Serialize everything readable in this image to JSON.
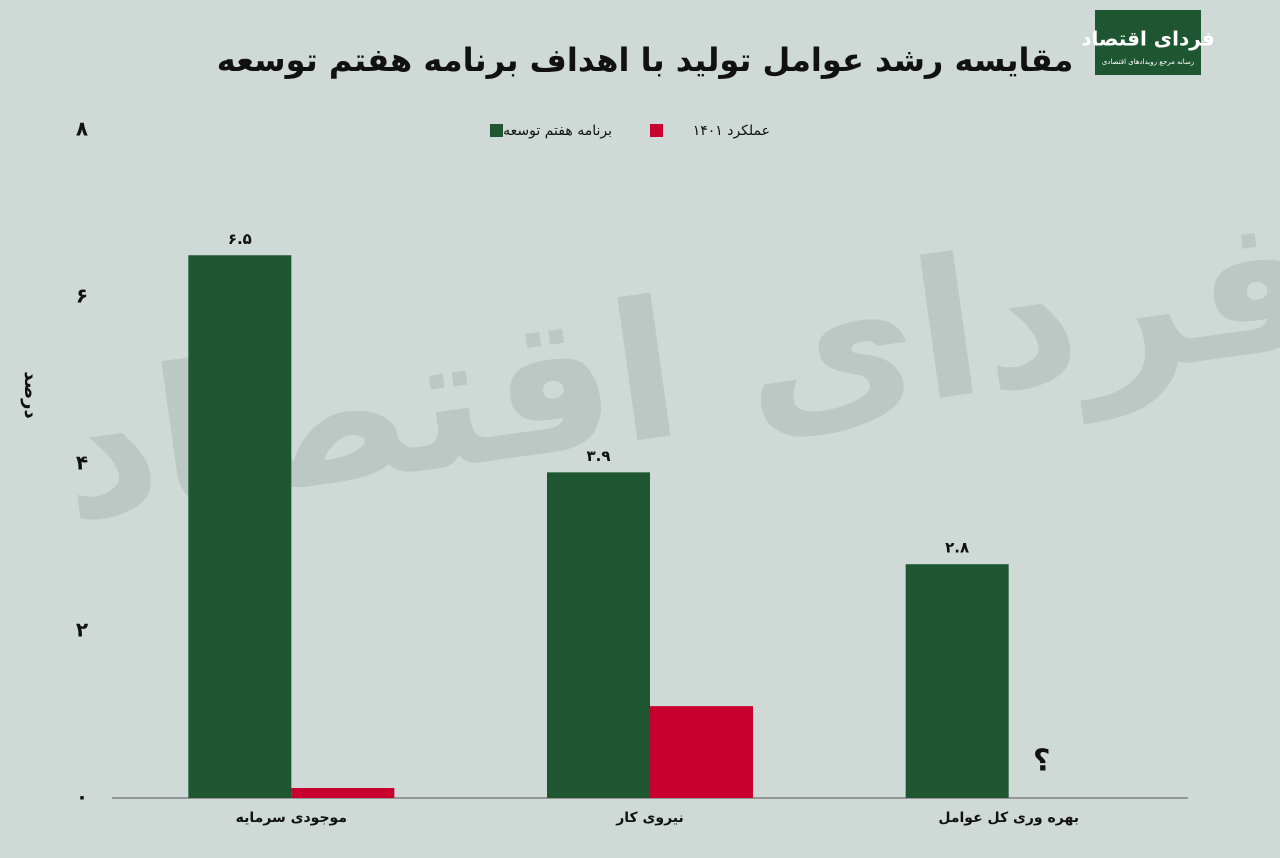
{
  "chart_data": {
    "type": "bar",
    "title": "مقایسه رشد عوامل تولید با اهداف برنامه هفتم توسعه",
    "logo": "فردای اقتصاد",
    "logo_subtitle": "رسانه مرجع رویدادهای اقتصادی",
    "watermark": "فردای اقتصاد",
    "y_label": "درصد",
    "categories": [
      "موجودی سرمایه",
      "نیروی کار",
      "بهره وری کل عوامل"
    ],
    "series": [
      {
        "name": "برنامه هفتم توسعه",
        "color": "#1e5631",
        "values": [
          6.5,
          3.9,
          2.8
        ],
        "value_labels": [
          "۶.۵",
          "۳.۹",
          "۲.۸"
        ]
      },
      {
        "name": "عملکرد ۱۴۰۱",
        "color": "#c8002d",
        "values": [
          0.12,
          1.1,
          null
        ]
      }
    ],
    "missing_label": "؟",
    "ylim": [
      0,
      8
    ],
    "yticks": [
      {
        "value": 0,
        "label": "۰"
      },
      {
        "value": 2,
        "label": "۲"
      },
      {
        "value": 4,
        "label": "۴"
      },
      {
        "value": 6,
        "label": "۶"
      },
      {
        "value": 8,
        "label": "۸"
      }
    ],
    "grid": false
  }
}
